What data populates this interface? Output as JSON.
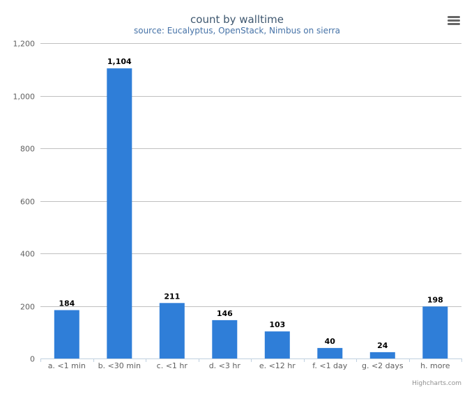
{
  "chart": {
    "title": "count by walltime",
    "subtitle": "source: Eucalyptus, OpenStack, Nimbus on sierra",
    "credits": "Highcharts.com",
    "menu_icon": "hamburger-menu-icon"
  },
  "chart_data": {
    "type": "bar",
    "categories": [
      "a. <1 min",
      "b. <30 min",
      "c. <1 hr",
      "d. <3 hr",
      "e. <12 hr",
      "f. <1 day",
      "g. <2 days",
      "h. more"
    ],
    "values": [
      184,
      1104,
      211,
      146,
      103,
      40,
      24,
      198
    ],
    "data_labels": [
      "184",
      "1,104",
      "211",
      "146",
      "103",
      "40",
      "24",
      "198"
    ],
    "ylim": [
      0,
      1200
    ],
    "yticks": [
      0,
      200,
      400,
      600,
      800,
      1000,
      1200
    ],
    "ytick_labels": [
      "0",
      "200",
      "400",
      "600",
      "800",
      "1,000",
      "1,200"
    ],
    "grid": true,
    "legend": false,
    "bar_color": "#2f7ed8",
    "grid_color": "#c0c0c0"
  }
}
